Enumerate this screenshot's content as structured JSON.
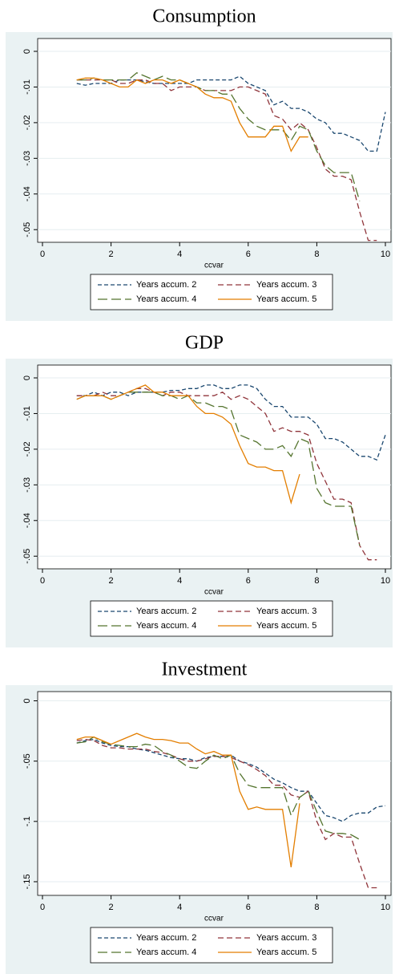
{
  "chart_data": [
    {
      "type": "line",
      "title": "Consumption",
      "xlabel": "ccvar",
      "x": [
        1,
        1.25,
        1.5,
        1.75,
        2,
        2.25,
        2.5,
        2.75,
        3,
        3.25,
        3.5,
        3.75,
        4,
        4.25,
        4.5,
        4.75,
        5,
        5.25,
        5.5,
        5.75,
        6,
        6.25,
        6.5,
        6.75,
        7,
        7.25,
        7.5,
        7.75,
        8,
        8.25,
        8.5,
        8.75,
        9,
        9.25,
        9.5,
        9.75,
        10
      ],
      "xlim": [
        0,
        10
      ],
      "xticks": [
        0,
        2,
        4,
        6,
        8,
        10
      ],
      "ylim": [
        -0.0531,
        0.0027
      ],
      "yticks": [
        0,
        {
          "value": -0.01,
          "label": "-.01"
        },
        {
          "value": -0.02,
          "label": "-.02"
        },
        {
          "value": -0.03,
          "label": "-.03"
        },
        {
          "value": -0.04,
          "label": "-.04"
        },
        {
          "value": -0.05,
          "label": "-.05"
        }
      ],
      "grid": true,
      "series": [
        {
          "name": "Years accum. 2",
          "color": "#1a476f",
          "values": [
            -0.009,
            -0.0095,
            -0.009,
            -0.009,
            -0.009,
            -0.008,
            -0.008,
            -0.008,
            -0.0085,
            -0.009,
            -0.009,
            -0.009,
            -0.009,
            -0.009,
            -0.008,
            -0.008,
            -0.008,
            -0.008,
            -0.008,
            -0.007,
            -0.009,
            -0.01,
            -0.011,
            -0.015,
            -0.014,
            -0.016,
            -0.016,
            -0.017,
            -0.019,
            -0.02,
            -0.023,
            -0.023,
            -0.024,
            -0.025,
            -0.028,
            -0.028,
            -0.017
          ]
        },
        {
          "name": "Years accum. 3",
          "color": "#90353b",
          "values": [
            -0.008,
            -0.008,
            -0.008,
            -0.008,
            -0.008,
            -0.009,
            -0.009,
            -0.008,
            -0.008,
            -0.009,
            -0.009,
            -0.011,
            -0.01,
            -0.01,
            -0.01,
            -0.011,
            -0.011,
            -0.011,
            -0.011,
            -0.01,
            -0.01,
            -0.011,
            -0.012,
            -0.018,
            -0.019,
            -0.022,
            -0.02,
            -0.022,
            -0.027,
            -0.033,
            -0.035,
            -0.035,
            -0.036,
            -0.045,
            -0.053,
            -0.053,
            null
          ]
        },
        {
          "name": "Years accum. 4",
          "color": "#55752f",
          "values": [
            -0.008,
            -0.008,
            -0.0075,
            -0.008,
            -0.008,
            -0.008,
            -0.008,
            -0.006,
            -0.007,
            -0.008,
            -0.007,
            -0.008,
            -0.008,
            -0.009,
            -0.01,
            -0.011,
            -0.011,
            -0.012,
            -0.012,
            -0.016,
            -0.019,
            -0.021,
            -0.022,
            -0.022,
            -0.022,
            -0.025,
            -0.021,
            -0.022,
            -0.028,
            -0.032,
            -0.034,
            -0.034,
            -0.034,
            -0.042,
            null,
            null,
            null
          ]
        },
        {
          "name": "Years accum. 5",
          "color": "#e37e00",
          "values": [
            -0.008,
            -0.0075,
            -0.0075,
            -0.008,
            -0.009,
            -0.01,
            -0.01,
            -0.008,
            -0.009,
            -0.008,
            -0.008,
            -0.009,
            -0.008,
            -0.009,
            -0.01,
            -0.012,
            -0.013,
            -0.013,
            -0.014,
            -0.02,
            -0.024,
            -0.024,
            -0.024,
            -0.021,
            -0.021,
            -0.028,
            -0.024,
            -0.024,
            null,
            null,
            null,
            null,
            null,
            null,
            null,
            null,
            null
          ]
        }
      ]
    },
    {
      "type": "line",
      "title": "GDP",
      "xlabel": "ccvar",
      "x": [
        1,
        1.25,
        1.5,
        1.75,
        2,
        2.25,
        2.5,
        2.75,
        3,
        3.25,
        3.5,
        3.75,
        4,
        4.25,
        4.5,
        4.75,
        5,
        5.25,
        5.5,
        5.75,
        6,
        6.25,
        6.5,
        6.75,
        7,
        7.25,
        7.5,
        7.75,
        8,
        8.25,
        8.5,
        8.75,
        9,
        9.25,
        9.5,
        9.75,
        10
      ],
      "xlim": [
        0,
        10
      ],
      "xticks": [
        0,
        2,
        4,
        6,
        8,
        10
      ],
      "ylim": [
        -0.0531,
        0.0027
      ],
      "yticks": [
        0,
        {
          "value": -0.01,
          "label": "-.01"
        },
        {
          "value": -0.02,
          "label": "-.02"
        },
        {
          "value": -0.03,
          "label": "-.03"
        },
        {
          "value": -0.04,
          "label": "-.04"
        },
        {
          "value": -0.05,
          "label": "-.05"
        }
      ],
      "grid": true,
      "series": [
        {
          "name": "Years accum. 2",
          "color": "#1a476f",
          "values": [
            -0.005,
            -0.005,
            -0.004,
            -0.005,
            -0.004,
            -0.004,
            -0.005,
            -0.004,
            -0.004,
            -0.004,
            -0.004,
            -0.0035,
            -0.0035,
            -0.003,
            -0.003,
            -0.002,
            -0.002,
            -0.003,
            -0.003,
            -0.002,
            -0.002,
            -0.003,
            -0.006,
            -0.008,
            -0.008,
            -0.011,
            -0.011,
            -0.011,
            -0.013,
            -0.017,
            -0.017,
            -0.018,
            -0.02,
            -0.022,
            -0.022,
            -0.023,
            -0.016
          ]
        },
        {
          "name": "Years accum. 3",
          "color": "#90353b",
          "values": [
            -0.005,
            -0.005,
            -0.005,
            -0.004,
            -0.005,
            -0.005,
            -0.004,
            -0.003,
            -0.003,
            -0.004,
            -0.005,
            -0.004,
            -0.004,
            -0.005,
            -0.005,
            -0.005,
            -0.005,
            -0.004,
            -0.006,
            -0.005,
            -0.006,
            -0.008,
            -0.01,
            -0.015,
            -0.014,
            -0.015,
            -0.015,
            -0.016,
            -0.024,
            -0.029,
            -0.034,
            -0.034,
            -0.035,
            -0.047,
            -0.051,
            -0.051,
            null
          ]
        },
        {
          "name": "Years accum. 4",
          "color": "#55752f",
          "values": [
            -0.006,
            -0.005,
            -0.005,
            -0.005,
            -0.006,
            -0.005,
            -0.004,
            -0.004,
            -0.004,
            -0.004,
            -0.005,
            -0.005,
            -0.006,
            -0.005,
            -0.007,
            -0.007,
            -0.008,
            -0.008,
            -0.009,
            -0.016,
            -0.017,
            -0.018,
            -0.02,
            -0.02,
            -0.019,
            -0.022,
            -0.017,
            -0.018,
            -0.031,
            -0.035,
            -0.036,
            -0.036,
            -0.036,
            -0.047,
            null,
            null,
            null
          ]
        },
        {
          "name": "Years accum. 5",
          "color": "#e37e00",
          "values": [
            -0.006,
            -0.005,
            -0.005,
            -0.005,
            -0.006,
            -0.005,
            -0.004,
            -0.003,
            -0.002,
            -0.004,
            -0.004,
            -0.005,
            -0.005,
            -0.005,
            -0.008,
            -0.01,
            -0.01,
            -0.011,
            -0.013,
            -0.019,
            -0.024,
            -0.025,
            -0.025,
            -0.026,
            -0.026,
            -0.035,
            -0.027,
            null,
            null,
            null,
            null,
            null,
            null,
            null,
            null,
            null,
            null
          ]
        }
      ]
    },
    {
      "type": "line",
      "title": "Investment",
      "xlabel": "ccvar",
      "x": [
        1,
        1.25,
        1.5,
        1.75,
        2,
        2.25,
        2.5,
        2.75,
        3,
        3.25,
        3.5,
        3.75,
        4,
        4.25,
        4.5,
        4.75,
        5,
        5.25,
        5.5,
        5.75,
        6,
        6.25,
        6.5,
        6.75,
        7,
        7.25,
        7.5,
        7.75,
        8,
        8.25,
        8.5,
        8.75,
        9,
        9.25,
        9.5,
        9.75,
        10
      ],
      "xlim": [
        0,
        10
      ],
      "xticks": [
        0,
        2,
        4,
        6,
        8,
        10
      ],
      "ylim": [
        -0.16,
        0.005
      ],
      "yticks": [
        0,
        {
          "value": -0.05,
          "label": "-.05"
        },
        {
          "value": -0.1,
          "label": "-.1"
        },
        {
          "value": -0.15,
          "label": "-.15"
        }
      ],
      "grid": true,
      "series": [
        {
          "name": "Years accum. 2",
          "color": "#1a476f",
          "values": [
            -0.035,
            -0.033,
            -0.032,
            -0.035,
            -0.037,
            -0.038,
            -0.038,
            -0.04,
            -0.041,
            -0.043,
            -0.045,
            -0.047,
            -0.048,
            -0.048,
            -0.05,
            -0.047,
            -0.046,
            -0.046,
            -0.045,
            -0.05,
            -0.052,
            -0.055,
            -0.06,
            -0.065,
            -0.068,
            -0.072,
            -0.075,
            -0.075,
            -0.085,
            -0.095,
            -0.097,
            -0.1,
            -0.095,
            -0.093,
            -0.093,
            -0.088,
            -0.087
          ]
        },
        {
          "name": "Years accum. 3",
          "color": "#90353b",
          "values": [
            -0.033,
            -0.032,
            -0.033,
            -0.037,
            -0.039,
            -0.039,
            -0.04,
            -0.04,
            -0.04,
            -0.042,
            -0.043,
            -0.045,
            -0.048,
            -0.05,
            -0.05,
            -0.048,
            -0.046,
            -0.046,
            -0.047,
            -0.05,
            -0.053,
            -0.057,
            -0.062,
            -0.07,
            -0.07,
            -0.078,
            -0.08,
            -0.075,
            -0.1,
            -0.115,
            -0.11,
            -0.113,
            -0.113,
            -0.135,
            -0.155,
            -0.155,
            null
          ]
        },
        {
          "name": "Years accum. 4",
          "color": "#55752f",
          "values": [
            -0.035,
            -0.034,
            -0.03,
            -0.034,
            -0.036,
            -0.037,
            -0.038,
            -0.038,
            -0.036,
            -0.037,
            -0.042,
            -0.045,
            -0.05,
            -0.055,
            -0.056,
            -0.05,
            -0.045,
            -0.048,
            -0.045,
            -0.06,
            -0.07,
            -0.072,
            -0.072,
            -0.072,
            -0.072,
            -0.095,
            -0.08,
            -0.075,
            -0.092,
            -0.108,
            -0.11,
            -0.11,
            -0.111,
            -0.115,
            null,
            null,
            null
          ]
        },
        {
          "name": "Years accum. 5",
          "color": "#e37e00",
          "values": [
            -0.032,
            -0.03,
            -0.03,
            -0.033,
            -0.036,
            -0.033,
            -0.03,
            -0.027,
            -0.03,
            -0.032,
            -0.032,
            -0.033,
            -0.035,
            -0.035,
            -0.04,
            -0.044,
            -0.042,
            -0.045,
            -0.045,
            -0.075,
            -0.09,
            -0.088,
            -0.09,
            -0.09,
            -0.09,
            -0.138,
            -0.085,
            null,
            null,
            null,
            null,
            null,
            null,
            null,
            null,
            null,
            null
          ]
        }
      ]
    }
  ]
}
